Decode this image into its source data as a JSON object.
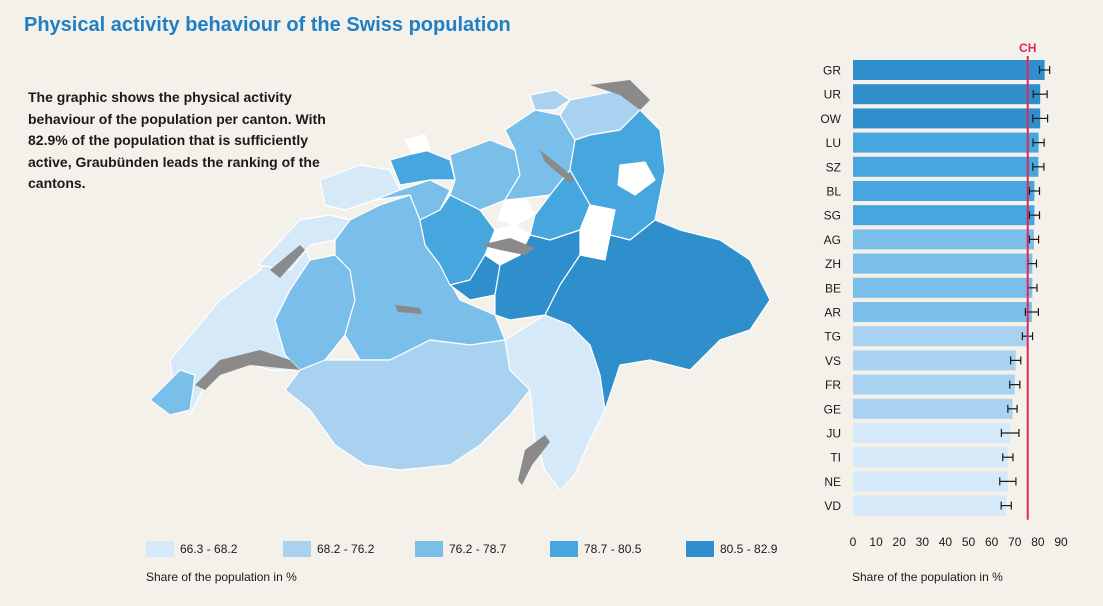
{
  "title": "Physical activity behaviour of the Swiss population",
  "intro": "The graphic shows the physical activity behaviour of the population per canton. With 82.9% of the population that is sufficiently active, Graubünden leads the ranking of the cantons.",
  "legend": [
    {
      "label": "66.3 - 68.2",
      "color": "#d6e9f8"
    },
    {
      "label": "68.2 - 76.2",
      "color": "#a9d2f0"
    },
    {
      "label": "76.2 - 78.7",
      "color": "#79bfe9"
    },
    {
      "label": "78.7 - 80.5",
      "color": "#46a6de"
    },
    {
      "label": "80.5 - 82.9",
      "color": "#2f8fcc"
    }
  ],
  "map_axis_title": "Share of the population in %",
  "chart_data": {
    "type": "bar",
    "orientation": "horizontal",
    "categories": [
      "GR",
      "UR",
      "OW",
      "LU",
      "SZ",
      "BL",
      "SG",
      "AG",
      "ZH",
      "BE",
      "AR",
      "TG",
      "VS",
      "FR",
      "GE",
      "JU",
      "TI",
      "NE",
      "VD"
    ],
    "values": [
      82.9,
      81.0,
      81.0,
      80.3,
      80.2,
      78.5,
      78.5,
      78.3,
      77.6,
      77.6,
      77.4,
      75.5,
      70.4,
      70.0,
      69.0,
      68.0,
      67.0,
      67.0,
      66.3
    ],
    "errors": [
      2.2,
      3.0,
      3.2,
      2.4,
      2.4,
      2.2,
      2.2,
      2.0,
      1.8,
      2.0,
      2.8,
      2.2,
      2.2,
      2.2,
      2.0,
      3.8,
      2.2,
      3.5,
      2.2
    ],
    "colors": [
      "#2f8fcc",
      "#2f8fcc",
      "#2f8fcc",
      "#46a6de",
      "#46a6de",
      "#46a6de",
      "#46a6de",
      "#79bfe9",
      "#79bfe9",
      "#79bfe9",
      "#79bfe9",
      "#a9d2f0",
      "#a9d2f0",
      "#a9d2f0",
      "#a9d2f0",
      "#d6e9f8",
      "#d6e9f8",
      "#d6e9f8",
      "#d6e9f8"
    ],
    "reference": {
      "label": "CH",
      "value": 75.6,
      "color": "#e0245e"
    },
    "xlim": [
      0,
      90
    ],
    "xticks": [
      0,
      10,
      20,
      30,
      40,
      50,
      60,
      70,
      80,
      90
    ],
    "xlabel": "Share of the population in %"
  }
}
